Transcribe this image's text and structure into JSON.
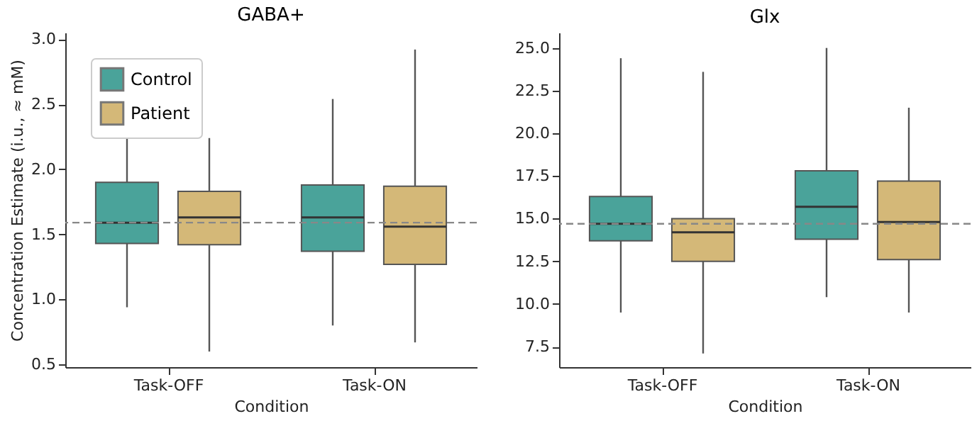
{
  "chart_data": [
    {
      "type": "box",
      "title": "GABA+",
      "xlabel": "Condition",
      "ylabel": "Concentration Estimate (i.u., ≈ mM)",
      "categories": [
        "Task-OFF",
        "Task-ON"
      ],
      "series": [
        {
          "name": "Control",
          "color": "#4aa39a",
          "boxes": [
            {
              "low": 0.94,
              "q1": 1.43,
              "median": 1.59,
              "q3": 1.9,
              "high": 2.37
            },
            {
              "low": 0.8,
              "q1": 1.37,
              "median": 1.63,
              "q3": 1.88,
              "high": 2.54
            }
          ]
        },
        {
          "name": "Patient",
          "color": "#d4b878",
          "boxes": [
            {
              "low": 0.6,
              "q1": 1.42,
              "median": 1.63,
              "q3": 1.83,
              "high": 2.24
            },
            {
              "low": 0.67,
              "q1": 1.27,
              "median": 1.56,
              "q3": 1.87,
              "high": 2.92
            }
          ]
        }
      ],
      "ylim": [
        0.48,
        3.05
      ],
      "yticks": [
        {
          "value": 0.5,
          "label": "0.5"
        },
        {
          "value": 1,
          "label": "1.0"
        },
        {
          "value": 1.5,
          "label": "1.5"
        },
        {
          "value": 2,
          "label": "2.0"
        },
        {
          "value": 2.5,
          "label": "2.5"
        },
        {
          "value": 3,
          "label": "3.0"
        }
      ],
      "ref_lines": [
        {
          "axis": "y",
          "value": 1.59,
          "color": "#888888",
          "line_style": "dashed"
        }
      ],
      "grid": false,
      "legend": "top left"
    },
    {
      "type": "box",
      "title": "Glx",
      "xlabel": "Condition",
      "categories": [
        "Task-OFF",
        "Task-ON"
      ],
      "series": [
        {
          "color": "#4aa39a",
          "boxes": [
            {
              "low": 9.5,
              "q1": 13.7,
              "median": 14.7,
              "q3": 16.3,
              "high": 24.4
            },
            {
              "low": 10.4,
              "q1": 13.8,
              "median": 15.7,
              "q3": 17.8,
              "high": 25.0
            }
          ]
        },
        {
          "color": "#d4b878",
          "boxes": [
            {
              "low": 7.1,
              "q1": 12.5,
              "median": 14.2,
              "q3": 15.0,
              "high": 23.6
            },
            {
              "low": 9.5,
              "q1": 12.6,
              "median": 14.8,
              "q3": 17.2,
              "high": 21.5
            }
          ]
        }
      ],
      "ylim": [
        6.3,
        25.9
      ],
      "yticks": [
        {
          "value": 7.5,
          "label": "7.5"
        },
        {
          "value": 10,
          "label": "10.0"
        },
        {
          "value": 12.5,
          "label": "12.5"
        },
        {
          "value": 15,
          "label": "15.0"
        },
        {
          "value": 17.5,
          "label": "17.5"
        },
        {
          "value": 20,
          "label": "20.0"
        },
        {
          "value": 22.5,
          "label": "22.5"
        },
        {
          "value": 25,
          "label": "25.0"
        }
      ],
      "ref_lines": [
        {
          "axis": "y",
          "value": 14.7,
          "color": "#888888",
          "line_style": "dashed"
        }
      ],
      "grid": false
    }
  ]
}
